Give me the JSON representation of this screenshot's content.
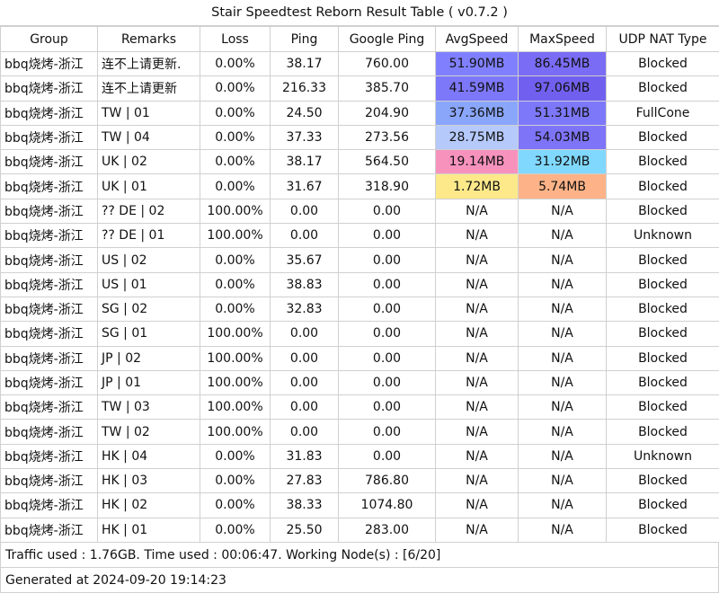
{
  "title": "Stair Speedtest Reborn Result Table ( v0.7.2 )",
  "columns": [
    "Group",
    "Remarks",
    "Loss",
    "Ping",
    "Google Ping",
    "AvgSpeed",
    "MaxSpeed",
    "UDP NAT Type"
  ],
  "speed_colors": {
    "row1_avg": "#8080ff",
    "row1_max": "#7a6cf5",
    "row2_avg": "#7d78fa",
    "row2_max": "#7160ef",
    "row3_avg": "#8aa6fb",
    "row3_max": "#7d78fa",
    "row4_avg": "#b5c9fa",
    "row4_max": "#7e74f7",
    "row5_avg": "#f792bd",
    "row5_max": "#80d8fe",
    "row6_avg": "#fde98a",
    "row6_max": "#fdb387"
  },
  "rows": [
    {
      "group": "bbq烧烤-浙江",
      "remarks": "连不上请更新.",
      "loss": "0.00%",
      "ping": "38.17",
      "google_ping": "760.00",
      "avg": "51.90MB",
      "max": "86.45MB",
      "nat": "Blocked"
    },
    {
      "group": "bbq烧烤-浙江",
      "remarks": "连不上请更新",
      "loss": "0.00%",
      "ping": "216.33",
      "google_ping": "385.70",
      "avg": "41.59MB",
      "max": "97.06MB",
      "nat": "Blocked"
    },
    {
      "group": "bbq烧烤-浙江",
      "remarks": "TW | 01",
      "loss": "0.00%",
      "ping": "24.50",
      "google_ping": "204.90",
      "avg": "37.36MB",
      "max": "51.31MB",
      "nat": "FullCone"
    },
    {
      "group": "bbq烧烤-浙江",
      "remarks": "TW | 04",
      "loss": "0.00%",
      "ping": "37.33",
      "google_ping": "273.56",
      "avg": "28.75MB",
      "max": "54.03MB",
      "nat": "Blocked"
    },
    {
      "group": "bbq烧烤-浙江",
      "remarks": "UK | 02",
      "loss": "0.00%",
      "ping": "38.17",
      "google_ping": "564.50",
      "avg": "19.14MB",
      "max": "31.92MB",
      "nat": "Blocked"
    },
    {
      "group": "bbq烧烤-浙江",
      "remarks": "UK | 01",
      "loss": "0.00%",
      "ping": "31.67",
      "google_ping": "318.90",
      "avg": "1.72MB",
      "max": "5.74MB",
      "nat": "Blocked"
    },
    {
      "group": "bbq烧烤-浙江",
      "remarks": "?? DE | 02",
      "loss": "100.00%",
      "ping": "0.00",
      "google_ping": "0.00",
      "avg": "N/A",
      "max": "N/A",
      "nat": "Blocked"
    },
    {
      "group": "bbq烧烤-浙江",
      "remarks": "?? DE | 01",
      "loss": "100.00%",
      "ping": "0.00",
      "google_ping": "0.00",
      "avg": "N/A",
      "max": "N/A",
      "nat": "Unknown"
    },
    {
      "group": "bbq烧烤-浙江",
      "remarks": "US | 02",
      "loss": "0.00%",
      "ping": "35.67",
      "google_ping": "0.00",
      "avg": "N/A",
      "max": "N/A",
      "nat": "Blocked"
    },
    {
      "group": "bbq烧烤-浙江",
      "remarks": "US | 01",
      "loss": "0.00%",
      "ping": "38.83",
      "google_ping": "0.00",
      "avg": "N/A",
      "max": "N/A",
      "nat": "Blocked"
    },
    {
      "group": "bbq烧烤-浙江",
      "remarks": "SG | 02",
      "loss": "0.00%",
      "ping": "32.83",
      "google_ping": "0.00",
      "avg": "N/A",
      "max": "N/A",
      "nat": "Blocked"
    },
    {
      "group": "bbq烧烤-浙江",
      "remarks": "SG | 01",
      "loss": "100.00%",
      "ping": "0.00",
      "google_ping": "0.00",
      "avg": "N/A",
      "max": "N/A",
      "nat": "Blocked"
    },
    {
      "group": "bbq烧烤-浙江",
      "remarks": "JP | 02",
      "loss": "100.00%",
      "ping": "0.00",
      "google_ping": "0.00",
      "avg": "N/A",
      "max": "N/A",
      "nat": "Blocked"
    },
    {
      "group": "bbq烧烤-浙江",
      "remarks": "JP | 01",
      "loss": "100.00%",
      "ping": "0.00",
      "google_ping": "0.00",
      "avg": "N/A",
      "max": "N/A",
      "nat": "Blocked"
    },
    {
      "group": "bbq烧烤-浙江",
      "remarks": "TW | 03",
      "loss": "100.00%",
      "ping": "0.00",
      "google_ping": "0.00",
      "avg": "N/A",
      "max": "N/A",
      "nat": "Blocked"
    },
    {
      "group": "bbq烧烤-浙江",
      "remarks": "TW | 02",
      "loss": "100.00%",
      "ping": "0.00",
      "google_ping": "0.00",
      "avg": "N/A",
      "max": "N/A",
      "nat": "Blocked"
    },
    {
      "group": "bbq烧烤-浙江",
      "remarks": "HK | 04",
      "loss": "0.00%",
      "ping": "31.83",
      "google_ping": "0.00",
      "avg": "N/A",
      "max": "N/A",
      "nat": "Unknown"
    },
    {
      "group": "bbq烧烤-浙江",
      "remarks": "HK | 03",
      "loss": "0.00%",
      "ping": "27.83",
      "google_ping": "786.80",
      "avg": "N/A",
      "max": "N/A",
      "nat": "Blocked"
    },
    {
      "group": "bbq烧烤-浙江",
      "remarks": "HK | 02",
      "loss": "0.00%",
      "ping": "38.33",
      "google_ping": "1074.80",
      "avg": "N/A",
      "max": "N/A",
      "nat": "Blocked"
    },
    {
      "group": "bbq烧烤-浙江",
      "remarks": "HK | 01",
      "loss": "0.00%",
      "ping": "25.50",
      "google_ping": "283.00",
      "avg": "N/A",
      "max": "N/A",
      "nat": "Blocked"
    }
  ],
  "footer": {
    "traffic": "Traffic used : 1.76GB. Time used : 00:06:47. Working Node(s) : [6/20]",
    "generated": "Generated at 2024-09-20 19:14:23"
  }
}
